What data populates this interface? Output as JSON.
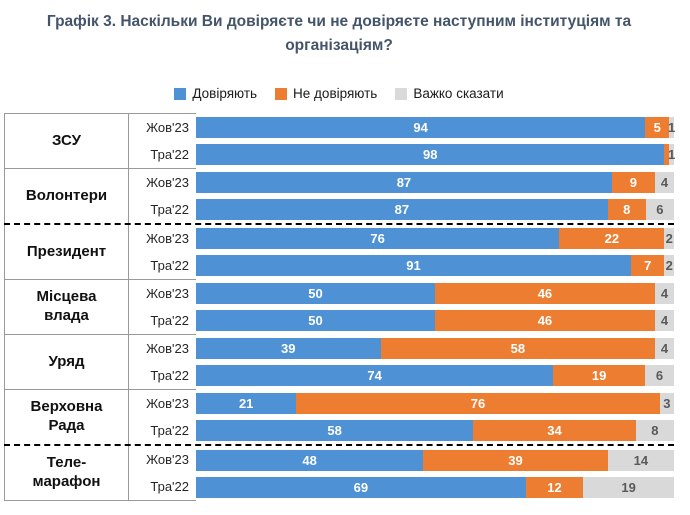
{
  "title": "Графік 3. Наскільки Ви довіряєте чи не довіряєте наступним інституціям та організаціям?",
  "legend": [
    {
      "label": "Довіряють",
      "color": "#4e91d5"
    },
    {
      "label": "Не довіряють",
      "color": "#ed7d31"
    },
    {
      "label": "Важко сказати",
      "color": "#d9d9d9"
    }
  ],
  "chart_data": {
    "type": "bar",
    "stacked": true,
    "orientation": "horizontal",
    "unit": "percent",
    "series_names": [
      "Довіряють",
      "Не довіряють",
      "Важко сказати"
    ],
    "colors": [
      "#4e91d5",
      "#ed7d31",
      "#d9d9d9"
    ],
    "label_colors": [
      "#ffffff",
      "#ffffff",
      "#595959"
    ],
    "xlim": [
      0,
      100
    ],
    "groups": [
      {
        "name": "ЗСУ",
        "dashed_separator_above": false,
        "rows": [
          {
            "period": "Жов'23",
            "values": [
              94,
              5,
              1
            ],
            "labels": [
              "94",
              "5",
              "1"
            ]
          },
          {
            "period": "Тра'22",
            "values": [
              98,
              1,
              1
            ],
            "labels": [
              "98",
              "",
              "1"
            ]
          }
        ]
      },
      {
        "name": "Волонтери",
        "dashed_separator_above": false,
        "rows": [
          {
            "period": "Жов'23",
            "values": [
              87,
              9,
              4
            ],
            "labels": [
              "87",
              "9",
              "4"
            ]
          },
          {
            "period": "Тра'22",
            "values": [
              87,
              8,
              6
            ],
            "labels": [
              "87",
              "8",
              "6"
            ]
          }
        ]
      },
      {
        "name": "Президент",
        "dashed_separator_above": true,
        "rows": [
          {
            "period": "Жов'23",
            "values": [
              76,
              22,
              2
            ],
            "labels": [
              "76",
              "22",
              "2"
            ]
          },
          {
            "period": "Тра'22",
            "values": [
              91,
              7,
              2
            ],
            "labels": [
              "91",
              "7",
              "2"
            ]
          }
        ]
      },
      {
        "name": "Місцева влада",
        "dashed_separator_above": false,
        "rows": [
          {
            "period": "Жов'23",
            "values": [
              50,
              46,
              4
            ],
            "labels": [
              "50",
              "46",
              "4"
            ]
          },
          {
            "period": "Тра'22",
            "values": [
              50,
              46,
              4
            ],
            "labels": [
              "50",
              "46",
              "4"
            ]
          }
        ]
      },
      {
        "name": "Уряд",
        "dashed_separator_above": false,
        "rows": [
          {
            "period": "Жов'23",
            "values": [
              39,
              58,
              4
            ],
            "labels": [
              "39",
              "58",
              "4"
            ]
          },
          {
            "period": "Тра'22",
            "values": [
              74,
              19,
              6
            ],
            "labels": [
              "74",
              "19",
              "6"
            ]
          }
        ]
      },
      {
        "name": "Верховна Рада",
        "dashed_separator_above": false,
        "rows": [
          {
            "period": "Жов'23",
            "values": [
              21,
              76,
              3
            ],
            "labels": [
              "21",
              "76",
              "3"
            ]
          },
          {
            "period": "Тра'22",
            "values": [
              58,
              34,
              8
            ],
            "labels": [
              "58",
              "34",
              "8"
            ]
          }
        ]
      },
      {
        "name": "Теле-марафон",
        "dashed_separator_above": true,
        "rows": [
          {
            "period": "Жов'23",
            "values": [
              48,
              39,
              14
            ],
            "labels": [
              "48",
              "39",
              "14"
            ]
          },
          {
            "period": "Тра'22",
            "values": [
              69,
              12,
              19
            ],
            "labels": [
              "69",
              "12",
              "19"
            ]
          }
        ]
      }
    ]
  }
}
